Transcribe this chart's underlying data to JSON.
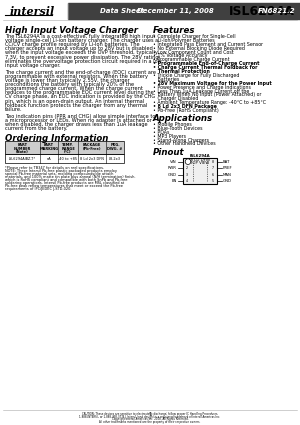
{
  "title": "ISL6294A",
  "logo_text": "intersil",
  "header_label": "Data Sheet",
  "header_date": "December 11, 2008",
  "header_fn": "FN6821.2",
  "section1_title": "High Input Voltage Charger",
  "section1_para1": [
    "The ISL6294A is a cost-effective, fully integrated high input",
    "voltage single-cell Li-ion battery charger. The charger uses a",
    "CC/CV charge profile required by Li-Ion batteries. The",
    "charger accepts an input voltage up to 28V but is disabled",
    "when the input voltage exceeds the OVP threshold, typically",
    "7.3V, to prevent excessive power dissipation. The 28V rating",
    "eliminates the overvoltage protection circuit required in a low",
    "input voltage charger."
  ],
  "section1_para2": [
    "The charge current and the end-of-charge (EOC) current are",
    "programmable with external resistors. When the battery",
    "voltage is lower than typically 2.55V, the charger",
    "preconditions the battery with typically 20% of the",
    "programmed charge current. When the charge current",
    "reduces to the programmable EOC current level during the",
    "CV charge phase, an EOC indication is provided by the CHG",
    "pin, which is an open-drain output. An internal thermal",
    "foldback function protects the charger from any thermal",
    "failure."
  ],
  "section1_para3": [
    "Two indication pins (PPR and CHG) allow simple interface to",
    "a microprocessor or LEDs. When no adapter is attached or",
    "when disabled, the charger draws less than 1uA leakage",
    "current from the battery."
  ],
  "section2_title": "Ordering Information",
  "ordering_headers": [
    "PART\nNUMBER\n(Note)",
    "PART\nMARKING",
    "TEMP.\nRANGE\n(°C)",
    "PACKAGE\n(Pb-Free)",
    "PKG.\nDWG. #"
  ],
  "ordering_row": [
    "ISL6294AIBZ-T*",
    "nA",
    "-40 to +85",
    "8 Ld 2x3 DFN",
    "L8.2x3"
  ],
  "ordering_note_lines": [
    "*Please refer to TB347 for details on reel specifications.",
    "NOTE: These Intersil Pb-free plastic packaged products employ",
    "special Pb-free material sets, molding compounds/die attach",
    "materials, and 100% matte tin plate plus anneal (N/H termination) finish,",
    "which is RoHS compliant and compatible with both SnPb and Pb-free",
    "soldering operations. Intersil Pb-free products are MSL classified at",
    "Pb-free peak reflow temperatures that meet or exceed the Pb-free",
    "requirements of IPC/JEDEC J-STD-020."
  ],
  "features_title": "Features",
  "features": [
    {
      "text": "Complete Charger for Single-Cell Li-Ion/Polymer Batteries",
      "bold": false
    },
    {
      "text": "Integrated Pass Element and Current Sensor",
      "bold": false
    },
    {
      "text": "No External Blocking Diode Required",
      "bold": false
    },
    {
      "text": "Low Component Count and Cost",
      "bold": false
    },
    {
      "text": "1% Voltage Accuracy",
      "bold": false
    },
    {
      "text": "Programmable Charge Current",
      "bold": false
    },
    {
      "text": "Programmable End-of-Charge Current",
      "bold": true
    },
    {
      "text": "Charge Current Thermal Foldback for Thermal Protection",
      "bold": true,
      "wrap": true
    },
    {
      "text": "Trickle Charge for Fully Discharged Batteries",
      "bold": false
    },
    {
      "text": "28V Maximum Voltage for the Power Input",
      "bold": true
    },
    {
      "text": "Power Presence and Charge Indications",
      "bold": false
    },
    {
      "text": "Less Than 1μA Leakage Current off the Battery When No Input (Power Attached) or Charger Disabled",
      "bold": false,
      "wrap": true
    },
    {
      "text": "Ambient Temperature Range: -40°C to +85°C",
      "bold": false
    },
    {
      "text": "8 Ld 2x3 DFN Package",
      "bold": true
    },
    {
      "text": "Pb-Free (RoHS Compliant)",
      "bold": false
    }
  ],
  "applications_title": "Applications",
  "applications": [
    "Mobile Phones",
    "Blue-Tooth Devices",
    "PDAs",
    "MP3 Players",
    "Stand-Alone Chargers",
    "Other Handheld Devices"
  ],
  "pinout_title": "Pinout",
  "pinout_subtitle1": "ISL6294A",
  "pinout_subtitle2": "(8 LD DFN)",
  "pinout_subtitle3": "TOP VIEW",
  "pinout_left_pins": [
    "VIN",
    "PWR",
    "GND",
    "EN"
  ],
  "pinout_right_pins": [
    "BAT",
    "PREF",
    "MAN",
    "GND"
  ],
  "pinout_left_nums": [
    "1",
    "2",
    "3",
    "4"
  ],
  "pinout_right_nums": [
    "8",
    "7",
    "6",
    "5"
  ],
  "footer_line1": "CAUTION: These devices are sensitive to electrostatic discharge; follow proper IC Handling Procedures.",
  "footer_line2": "1-888-INTERSIL or 1-888-468-3774 | Intersil (and design) is a registered trademark of Intersil Americas Inc.",
  "footer_line3": "Copyright Intersil Americas Inc. 2008. All Rights Reserved.",
  "footer_line4": "All other trademarks mentioned are the property of their respective owners.",
  "page_number": "1",
  "bg_color": "#ffffff",
  "header_bg": "#404040",
  "col_divider": 148
}
